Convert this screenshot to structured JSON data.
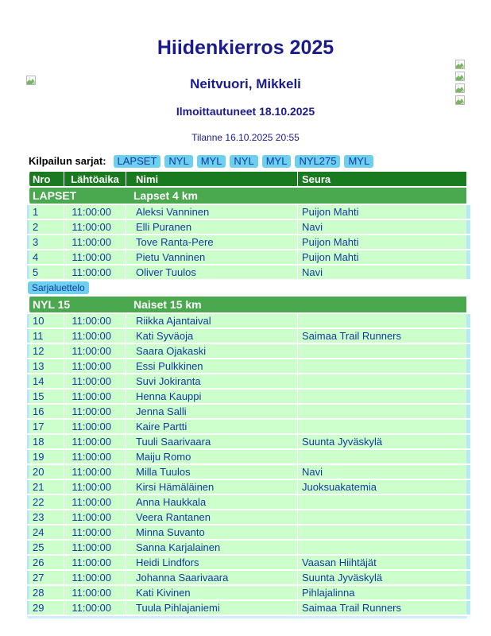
{
  "header": {
    "title": "Hiidenkierros 2025",
    "subtitle": "Neitvuori, Mikkeli",
    "registered_line": "Ilmoittautuneet 18.10.2025",
    "status_line": "Tilanne 16.10.2025 20:55"
  },
  "decorative_icons": {
    "type": "broken-image",
    "left_count": 1,
    "right_count": 4
  },
  "series_nav": {
    "label": "Kilpailun sarjat:",
    "links": [
      "LAPSET",
      "NYL",
      "MYL",
      "NYL",
      "MYL",
      "NYL275",
      "MYL"
    ]
  },
  "table": {
    "columns": [
      "Nro",
      "Lähtöaika",
      "Nimi",
      "Seura"
    ],
    "sections": [
      {
        "code": "LAPSET",
        "name": "Lapset 4 km",
        "rows": [
          [
            "1",
            "11:00:00",
            "Aleksi Vanninen",
            "Puijon Mahti"
          ],
          [
            "2",
            "11:00:00",
            "Elli Puranen",
            "Navi"
          ],
          [
            "3",
            "11:00:00",
            "Tove Ranta-Pere",
            "Puijon Mahti"
          ],
          [
            "4",
            "11:00:00",
            "Pietu Vanninen",
            "Puijon Mahti"
          ],
          [
            "5",
            "11:00:00",
            "Oliver Tuulos",
            "Navi"
          ]
        ],
        "footer_link": "Sarjaluettelo"
      },
      {
        "code": "NYL 15",
        "name": "Naiset 15 km",
        "rows": [
          [
            "10",
            "11:00:00",
            "Riikka Ajantaival",
            ""
          ],
          [
            "11",
            "11:00:00",
            "Kati Syväoja",
            "Saimaa Trail Runners"
          ],
          [
            "12",
            "11:00:00",
            "Saara Ojakaski",
            ""
          ],
          [
            "13",
            "11:00:00",
            "Essi Pulkkinen",
            ""
          ],
          [
            "14",
            "11:00:00",
            "Suvi Jokiranta",
            ""
          ],
          [
            "15",
            "11:00:00",
            "Henna Kauppi",
            ""
          ],
          [
            "16",
            "11:00:00",
            "Jenna Salli",
            ""
          ],
          [
            "17",
            "11:00:00",
            "Kaire Partti",
            ""
          ],
          [
            "18",
            "11:00:00",
            "Tuuli Saarivaara",
            "Suunta Jyväskylä"
          ],
          [
            "19",
            "11:00:00",
            "Maiju Romo",
            ""
          ],
          [
            "20",
            "11:00:00",
            "Milla Tuulos",
            "Navi"
          ],
          [
            "21",
            "11:00:00",
            "Kirsi Hämäläinen",
            "Juoksuakatemia"
          ],
          [
            "22",
            "11:00:00",
            "Anna Haukkala",
            ""
          ],
          [
            "23",
            "11:00:00",
            "Veera Rantanen",
            ""
          ],
          [
            "24",
            "11:00:00",
            "Minna Suvanto",
            ""
          ],
          [
            "25",
            "11:00:00",
            "Sanna Karjalainen",
            ""
          ],
          [
            "26",
            "11:00:00",
            "Heidi Lindfors",
            "Vaasan Hiihtäjät"
          ],
          [
            "27",
            "11:00:00",
            "Johanna Saarivaara",
            "Suunta Jyväskylä"
          ],
          [
            "28",
            "11:00:00",
            "Kati Kivinen",
            "Pihlajalinna"
          ],
          [
            "29",
            "11:00:00",
            "Tuula Pihlajaniemi",
            "Saimaa Trail Runners"
          ]
        ]
      }
    ]
  },
  "colors": {
    "heading_navy": "#1b1b8e",
    "table_text_navy": "#123a9e",
    "header_green_dark": "#1a7a1f",
    "section_green": "#4aa84e",
    "row_green": "#ccffcc",
    "link_pill_blue": "#6fcfee",
    "table_edge_cyan": "#b7e9f8"
  }
}
